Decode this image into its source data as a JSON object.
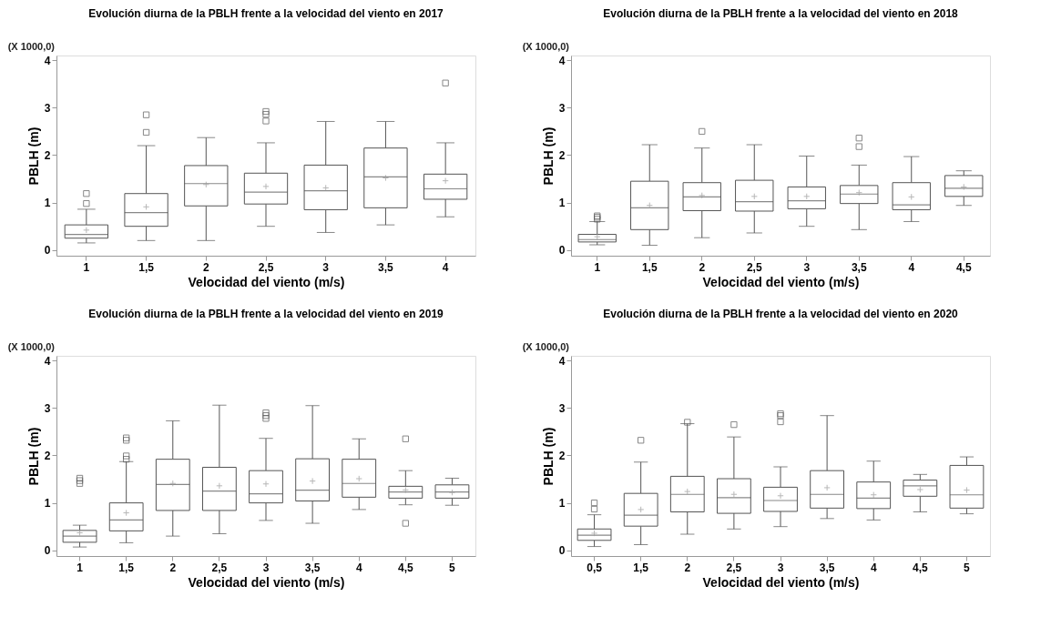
{
  "chart_data": [
    {
      "type": "box",
      "title": "Evolución diurna de la PBLH frente a la velocidad del viento en 2017",
      "xlabel": "Velocidad del viento (m/s)",
      "ylabel": "PBLH (m)",
      "annotations": [
        "(X 1000,0)"
      ],
      "categories": [
        "1",
        "1,5",
        "2",
        "2,5",
        "3",
        "3,5",
        "4"
      ],
      "ylim": [
        -0.12,
        4.1
      ],
      "yticks": [
        0,
        1,
        2,
        3,
        4
      ],
      "grid": false,
      "color": "#555555",
      "boxes": [
        {
          "low": 0.15,
          "q1": 0.25,
          "median": 0.33,
          "q3": 0.53,
          "high": 0.86,
          "mean": 0.42,
          "outliers": [
            0.98,
            1.19
          ]
        },
        {
          "low": 0.2,
          "q1": 0.5,
          "median": 0.79,
          "q3": 1.19,
          "high": 2.2,
          "mean": 0.91,
          "outliers": [
            2.48,
            2.85
          ]
        },
        {
          "low": 0.2,
          "q1": 0.93,
          "median": 1.4,
          "q3": 1.78,
          "high": 2.37,
          "mean": 1.38
        },
        {
          "low": 0.5,
          "q1": 0.97,
          "median": 1.22,
          "q3": 1.62,
          "high": 2.26,
          "mean": 1.34,
          "outliers": [
            2.72,
            2.86,
            2.92
          ]
        },
        {
          "low": 0.37,
          "q1": 0.85,
          "median": 1.25,
          "q3": 1.79,
          "high": 2.71,
          "mean": 1.31
        },
        {
          "low": 0.53,
          "q1": 0.89,
          "median": 1.54,
          "q3": 2.15,
          "high": 2.71,
          "mean": 1.52
        },
        {
          "low": 0.7,
          "q1": 1.07,
          "median": 1.29,
          "q3": 1.6,
          "high": 2.26,
          "mean": 1.46,
          "outliers": [
            3.52
          ]
        }
      ]
    },
    {
      "type": "box",
      "title": "Evolución diurna de la PBLH frente a la velocidad del viento en 2018",
      "xlabel": "Velocidad del viento (m/s)",
      "ylabel": "PBLH (m)",
      "annotations": [
        "(X 1000,0)"
      ],
      "categories": [
        "1",
        "1,5",
        "2",
        "2,5",
        "3",
        "3,5",
        "4",
        "4,5"
      ],
      "ylim": [
        -0.12,
        4.1
      ],
      "yticks": [
        0,
        1,
        2,
        3,
        4
      ],
      "grid": false,
      "color": "#555555",
      "boxes": [
        {
          "low": 0.11,
          "q1": 0.17,
          "median": 0.22,
          "q3": 0.33,
          "high": 0.6,
          "mean": 0.28,
          "outliers": [
            0.65,
            0.69,
            0.72
          ]
        },
        {
          "low": 0.1,
          "q1": 0.43,
          "median": 0.89,
          "q3": 1.45,
          "high": 2.22,
          "mean": 0.94
        },
        {
          "low": 0.26,
          "q1": 0.83,
          "median": 1.12,
          "q3": 1.42,
          "high": 2.15,
          "mean": 1.15,
          "outliers": [
            2.5
          ]
        },
        {
          "low": 0.36,
          "q1": 0.82,
          "median": 1.02,
          "q3": 1.47,
          "high": 2.22,
          "mean": 1.13
        },
        {
          "low": 0.5,
          "q1": 0.87,
          "median": 1.04,
          "q3": 1.33,
          "high": 1.98,
          "mean": 1.13
        },
        {
          "low": 0.43,
          "q1": 0.98,
          "median": 1.18,
          "q3": 1.36,
          "high": 1.79,
          "mean": 1.21,
          "outliers": [
            2.18,
            2.36
          ]
        },
        {
          "low": 0.6,
          "q1": 0.85,
          "median": 0.95,
          "q3": 1.42,
          "high": 1.97,
          "mean": 1.12
        },
        {
          "low": 0.94,
          "q1": 1.13,
          "median": 1.3,
          "q3": 1.57,
          "high": 1.67,
          "mean": 1.33
        }
      ]
    },
    {
      "type": "box",
      "title": "Evolución diurna de la PBLH frente a la velocidad del viento en 2019",
      "xlabel": "Velocidad del viento (m/s)",
      "ylabel": "PBLH (m)",
      "annotations": [
        "(X 1000,0)"
      ],
      "categories": [
        "1",
        "1,5",
        "2",
        "2,5",
        "3",
        "3,5",
        "4",
        "4,5",
        "5"
      ],
      "ylim": [
        -0.12,
        4.1
      ],
      "yticks": [
        0,
        1,
        2,
        3,
        4
      ],
      "grid": false,
      "color": "#555555",
      "boxes": [
        {
          "low": 0.07,
          "q1": 0.17,
          "median": 0.3,
          "q3": 0.42,
          "high": 0.53,
          "mean": 0.37,
          "outliers": [
            1.41,
            1.47,
            1.52
          ]
        },
        {
          "low": 0.16,
          "q1": 0.41,
          "median": 0.64,
          "q3": 1.0,
          "high": 1.87,
          "mean": 0.79,
          "outliers": [
            1.92,
            1.99,
            2.32,
            2.37
          ]
        },
        {
          "low": 0.3,
          "q1": 0.84,
          "median": 1.39,
          "q3": 1.92,
          "high": 2.73,
          "mean": 1.41
        },
        {
          "low": 0.35,
          "q1": 0.84,
          "median": 1.25,
          "q3": 1.75,
          "high": 3.06,
          "mean": 1.36
        },
        {
          "low": 0.63,
          "q1": 1.0,
          "median": 1.19,
          "q3": 1.68,
          "high": 2.36,
          "mean": 1.4,
          "outliers": [
            2.78,
            2.84,
            2.9
          ]
        },
        {
          "low": 0.57,
          "q1": 1.04,
          "median": 1.27,
          "q3": 1.93,
          "high": 3.05,
          "mean": 1.46
        },
        {
          "low": 0.86,
          "q1": 1.12,
          "median": 1.41,
          "q3": 1.92,
          "high": 2.35,
          "mean": 1.51
        },
        {
          "low": 0.96,
          "q1": 1.1,
          "median": 1.23,
          "q3": 1.35,
          "high": 1.68,
          "mean": 1.27,
          "outliers": [
            0.57,
            2.35
          ]
        },
        {
          "low": 0.95,
          "q1": 1.1,
          "median": 1.23,
          "q3": 1.38,
          "high": 1.52,
          "mean": 1.22
        }
      ]
    },
    {
      "type": "box",
      "title": "Evolución diurna de la PBLH frente a la velocidad del viento en 2020",
      "xlabel": "Velocidad del viento (m/s)",
      "ylabel": "PBLH (m)",
      "annotations": [
        "(X 1000,0)"
      ],
      "categories": [
        "0,5",
        "1,5",
        "2",
        "2,5",
        "3",
        "3,5",
        "4",
        "4,5",
        "5"
      ],
      "ylim": [
        -0.12,
        4.1
      ],
      "yticks": [
        0,
        1,
        2,
        3,
        4
      ],
      "grid": false,
      "color": "#555555",
      "boxes": [
        {
          "low": 0.08,
          "q1": 0.21,
          "median": 0.32,
          "q3": 0.45,
          "high": 0.75,
          "mean": 0.36,
          "outliers": [
            0.87,
            1.0
          ]
        },
        {
          "low": 0.12,
          "q1": 0.51,
          "median": 0.74,
          "q3": 1.2,
          "high": 1.86,
          "mean": 0.86,
          "outliers": [
            2.32
          ]
        },
        {
          "low": 0.34,
          "q1": 0.81,
          "median": 1.18,
          "q3": 1.56,
          "high": 2.67,
          "mean": 1.24,
          "outliers": [
            2.7
          ]
        },
        {
          "low": 0.45,
          "q1": 0.78,
          "median": 1.11,
          "q3": 1.51,
          "high": 2.39,
          "mean": 1.18,
          "outliers": [
            2.65
          ]
        },
        {
          "low": 0.5,
          "q1": 0.82,
          "median": 1.05,
          "q3": 1.33,
          "high": 1.76,
          "mean": 1.15,
          "outliers": [
            2.71,
            2.84,
            2.88
          ]
        },
        {
          "low": 0.67,
          "q1": 0.89,
          "median": 1.18,
          "q3": 1.68,
          "high": 2.84,
          "mean": 1.32
        },
        {
          "low": 0.64,
          "q1": 0.88,
          "median": 1.1,
          "q3": 1.44,
          "high": 1.88,
          "mean": 1.17
        },
        {
          "low": 0.81,
          "q1": 1.14,
          "median": 1.36,
          "q3": 1.48,
          "high": 1.6,
          "mean": 1.28
        },
        {
          "low": 0.77,
          "q1": 0.89,
          "median": 1.17,
          "q3": 1.79,
          "high": 1.97,
          "mean": 1.27
        }
      ]
    }
  ]
}
